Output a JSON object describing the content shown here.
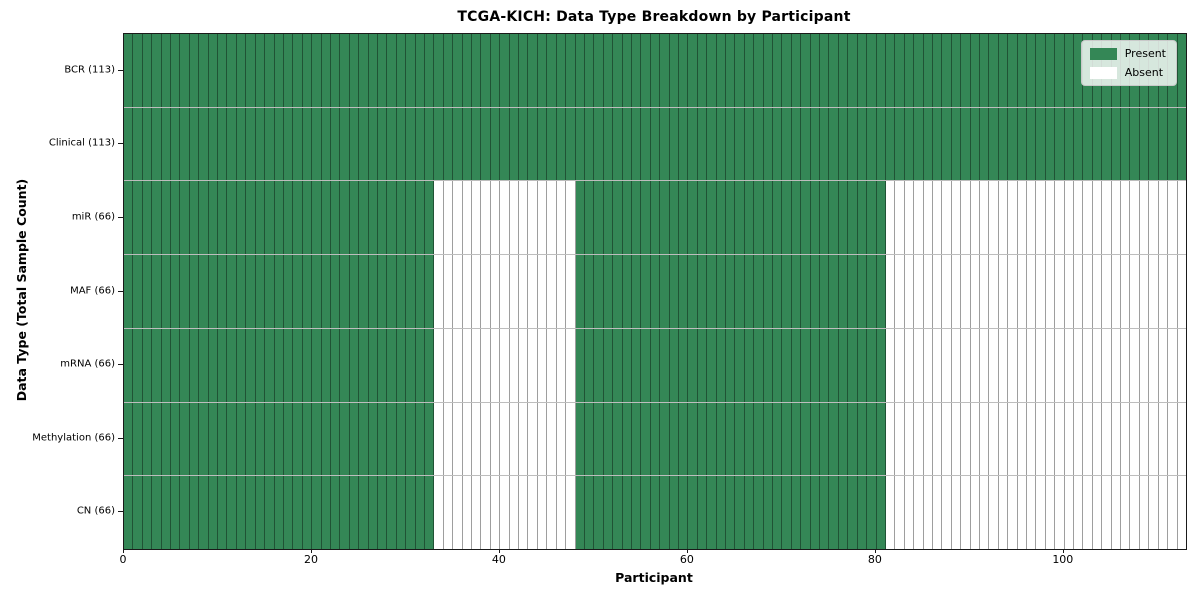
{
  "chart_data": {
    "type": "heatmap",
    "title": "TCGA-KICH: Data Type Breakdown by Participant",
    "xlabel": "Participant",
    "ylabel": "Data Type (Total Sample Count)",
    "x_ticks": [
      0,
      20,
      40,
      60,
      80,
      100
    ],
    "x_max": 113,
    "n_participants": 113,
    "grid": "per-cell borders",
    "legend_position": "upper right",
    "colors": {
      "present": "#348756",
      "absent": "#ffffff",
      "cell_edge": "rgba(0,0,0,0.38)",
      "row_separator": "rgba(0,0,0,0.26)",
      "spine": "#1a1a1a"
    },
    "legend": [
      {
        "label": "Present",
        "state": "present",
        "color": "#348756"
      },
      {
        "label": "Absent",
        "state": "absent",
        "color": "#ffffff"
      }
    ],
    "rows": [
      {
        "label": "BCR (113)",
        "data_type": "BCR",
        "total": 113,
        "segments": [
          [
            0,
            113,
            "present"
          ]
        ]
      },
      {
        "label": "Clinical (113)",
        "data_type": "Clinical",
        "total": 113,
        "segments": [
          [
            0,
            113,
            "present"
          ]
        ]
      },
      {
        "label": "miR (66)",
        "data_type": "miR",
        "total": 66,
        "segments": [
          [
            0,
            33,
            "present"
          ],
          [
            33,
            48,
            "absent"
          ],
          [
            48,
            81,
            "present"
          ],
          [
            81,
            113,
            "absent"
          ]
        ]
      },
      {
        "label": "MAF (66)",
        "data_type": "MAF",
        "total": 66,
        "segments": [
          [
            0,
            33,
            "present"
          ],
          [
            33,
            48,
            "absent"
          ],
          [
            48,
            81,
            "present"
          ],
          [
            81,
            113,
            "absent"
          ]
        ]
      },
      {
        "label": "mRNA (66)",
        "data_type": "mRNA",
        "total": 66,
        "segments": [
          [
            0,
            33,
            "present"
          ],
          [
            33,
            48,
            "absent"
          ],
          [
            48,
            81,
            "present"
          ],
          [
            81,
            113,
            "absent"
          ]
        ]
      },
      {
        "label": "Methylation (66)",
        "data_type": "Methylation",
        "total": 66,
        "segments": [
          [
            0,
            33,
            "present"
          ],
          [
            33,
            48,
            "absent"
          ],
          [
            48,
            81,
            "present"
          ],
          [
            81,
            113,
            "absent"
          ]
        ]
      },
      {
        "label": "CN (66)",
        "data_type": "CN",
        "total": 66,
        "segments": [
          [
            0,
            33,
            "present"
          ],
          [
            33,
            48,
            "absent"
          ],
          [
            48,
            81,
            "present"
          ],
          [
            81,
            113,
            "absent"
          ]
        ]
      }
    ]
  }
}
